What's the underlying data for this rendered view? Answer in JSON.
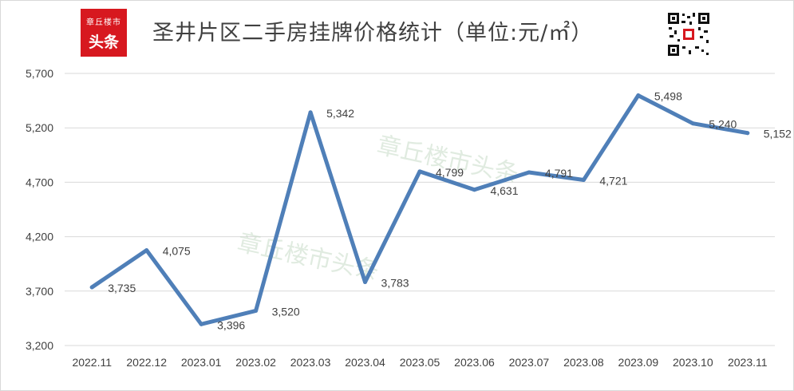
{
  "header": {
    "title": "圣井片区二手房挂牌价格统计（单位:元/㎡）",
    "logo_line1": "章丘楼市",
    "logo_line2": "头条"
  },
  "watermarks": [
    "章丘楼市头条",
    "章丘楼市头条"
  ],
  "colors": {
    "line": "#4f7fb8",
    "grid": "#d9d9d9",
    "logo": "#d7181f"
  },
  "chart_data": {
    "type": "line",
    "title": "圣井片区二手房挂牌价格统计（单位:元/㎡）",
    "xlabel": "",
    "ylabel": "",
    "categories": [
      "2022.11",
      "2022.12",
      "2023.01",
      "2023.02",
      "2023.03",
      "2023.04",
      "2023.05",
      "2023.06",
      "2023.07",
      "2023.08",
      "2023.09",
      "2023.10",
      "2023.11"
    ],
    "series": [
      {
        "values": [
          3735,
          4075,
          3396,
          3520,
          5342,
          3783,
          4799,
          4631,
          4791,
          4721,
          5498,
          5240,
          5152
        ]
      }
    ],
    "value_labels": [
      "3,735",
      "4,075",
      "3,396",
      "3,520",
      "5,342",
      "3,783",
      "4,799",
      "4,631",
      "4,791",
      "4,721",
      "5,498",
      "5,240",
      "5,152"
    ],
    "yticks": [
      3200,
      3700,
      4200,
      4700,
      5200,
      5700
    ],
    "ytick_labels": [
      "3,200",
      "3,700",
      "4,200",
      "4,700",
      "5,200",
      "5,700"
    ],
    "ylim": [
      3200,
      5700
    ],
    "grid": true,
    "legend": "none"
  }
}
